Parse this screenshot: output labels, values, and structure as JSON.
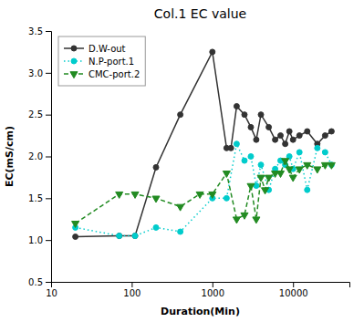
{
  "chart_data": {
    "type": "line",
    "title": "Col.1 EC value",
    "x_label": "Duration(Min)",
    "y_label": "EC(mS/cm)",
    "log": "x",
    "grid": false,
    "legend": "upper left",
    "xlim": [
      10,
      50000
    ],
    "xticks": [
      10,
      100,
      1000,
      10000
    ],
    "ylim": [
      0.5,
      3.5
    ],
    "yticks": [
      0.5,
      {
        "value": 1.0,
        "label": "1.0"
      },
      1.5,
      {
        "value": 2.0,
        "label": "2.0"
      },
      2.5,
      {
        "value": 3.0,
        "label": "3.0"
      },
      3.5
    ],
    "series": [
      {
        "name": "D.W-out",
        "color": "#333333",
        "marker": "circle",
        "line_style": "solid",
        "x": [
          20,
          70,
          110,
          200,
          400,
          1000,
          1500,
          1700,
          2000,
          2500,
          3000,
          3500,
          4000,
          5000,
          6000,
          7000,
          8000,
          9000,
          10000,
          12000,
          15000,
          20000,
          25000,
          30000
        ],
        "values": [
          1.04,
          1.05,
          1.05,
          1.87,
          2.5,
          3.25,
          2.1,
          2.1,
          2.6,
          2.5,
          2.35,
          2.2,
          2.5,
          2.35,
          2.2,
          2.25,
          2.15,
          2.3,
          2.2,
          2.25,
          2.3,
          2.15,
          2.25,
          2.3
        ]
      },
      {
        "name": "N.P-port.1",
        "color": "#00cccc",
        "marker": "circle",
        "line_style": "dotted",
        "x": [
          20,
          70,
          110,
          200,
          400,
          1000,
          1500,
          2000,
          2500,
          3000,
          3500,
          4000,
          5000,
          6000,
          7000,
          8000,
          9000,
          10000,
          12000,
          15000,
          20000,
          25000,
          30000
        ],
        "values": [
          1.15,
          1.05,
          1.05,
          1.15,
          1.1,
          1.5,
          1.5,
          2.15,
          1.95,
          2.0,
          1.65,
          1.9,
          1.6,
          1.85,
          1.95,
          1.9,
          2.0,
          1.85,
          2.05,
          1.6,
          2.1,
          2.05,
          1.9
        ]
      },
      {
        "name": "CMC-port.2",
        "color": "#228B22",
        "marker": "triangle-down",
        "line_style": "dashed",
        "x": [
          20,
          70,
          110,
          200,
          400,
          700,
          1000,
          1500,
          2000,
          2500,
          3000,
          3500,
          4000,
          4500,
          5000,
          6000,
          7000,
          8000,
          9000,
          10000,
          12000,
          15000,
          20000,
          25000,
          30000
        ],
        "values": [
          1.2,
          1.55,
          1.55,
          1.5,
          1.4,
          1.55,
          1.55,
          1.8,
          1.25,
          1.3,
          1.65,
          1.25,
          1.75,
          1.6,
          1.75,
          1.8,
          1.8,
          1.95,
          1.85,
          1.75,
          1.85,
          1.9,
          1.85,
          1.9,
          1.9
        ]
      }
    ]
  }
}
